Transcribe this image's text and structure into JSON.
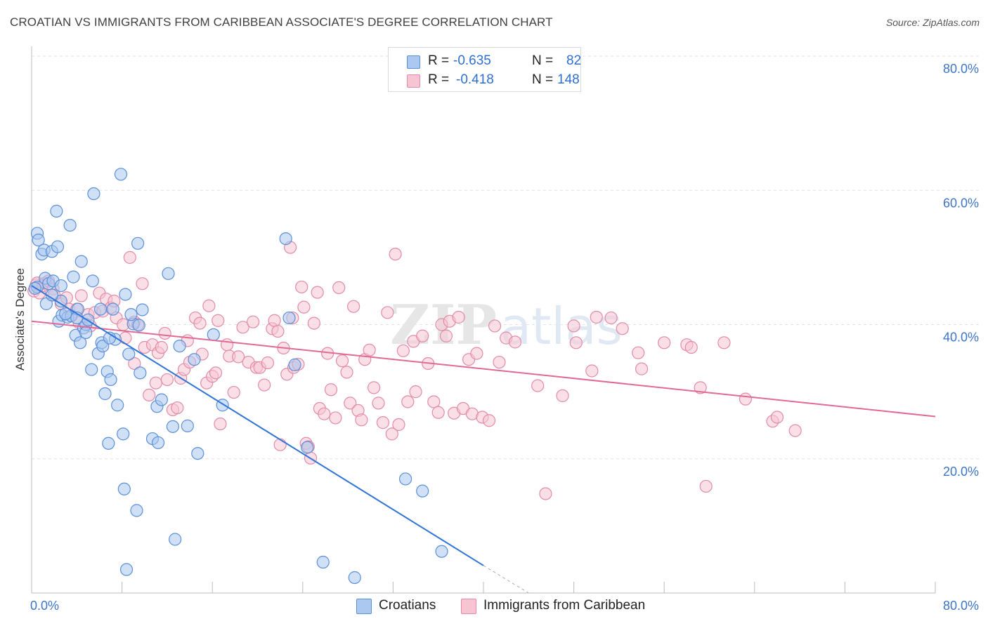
{
  "header": {
    "title": "CROATIAN VS IMMIGRANTS FROM CARIBBEAN ASSOCIATE'S DEGREE CORRELATION CHART",
    "source": "Source: ZipAtlas.com"
  },
  "legend_top": {
    "rows": [
      {
        "r_label": "R =",
        "r_value": "-0.635",
        "n_label": "N =",
        "n_value": "82"
      },
      {
        "r_label": "R =",
        "r_value": "-0.418",
        "n_label": "N =",
        "n_value": "148"
      }
    ]
  },
  "legend_bottom": [
    "Croatians",
    "Immigrants from Caribbean"
  ],
  "colors": {
    "blue_fill": "#aac8f0",
    "blue_stroke": "#5b8fd8",
    "blue_line": "#2f74d6",
    "pink_fill": "#f7c4d4",
    "pink_stroke": "#e28aa8",
    "pink_line": "#e06a95",
    "grid": "#e3e3e3",
    "axis_text": "#3d74c9"
  },
  "chart_data": {
    "type": "scatter",
    "title": "CROATIAN VS IMMIGRANTS FROM CARIBBEAN ASSOCIATE'S DEGREE CORRELATION CHART",
    "xlabel": "",
    "ylabel": "Associate's Degree",
    "xlim": [
      0,
      80
    ],
    "ylim": [
      0,
      80
    ],
    "x_tick_labels": [
      "0.0%",
      "80.0%"
    ],
    "y_tick_labels": [
      "20.0%",
      "40.0%",
      "60.0%",
      "80.0%"
    ],
    "y_ticks": [
      20,
      40,
      60,
      80
    ],
    "grid": true,
    "watermark": "ZIPatlas",
    "series": [
      {
        "name": "Croatians",
        "color": "#5b8fd8",
        "points": [
          [
            0.5,
            45.6
          ],
          [
            0.5,
            53.6
          ],
          [
            0.6,
            52.6
          ],
          [
            0.9,
            50.5
          ],
          [
            1.1,
            51.1
          ],
          [
            1.2,
            46.9
          ],
          [
            1.3,
            43.1
          ],
          [
            1.5,
            46.1
          ],
          [
            1.8,
            50.9
          ],
          [
            1.9,
            46.5
          ],
          [
            2.2,
            56.9
          ],
          [
            2.3,
            51.6
          ],
          [
            2.4,
            40.5
          ],
          [
            2.6,
            43.5
          ],
          [
            2.7,
            41.4
          ],
          [
            3.2,
            41.1
          ],
          [
            3.4,
            54.8
          ],
          [
            3.5,
            41.3
          ],
          [
            3.7,
            47.1
          ],
          [
            3.9,
            38.4
          ],
          [
            4.1,
            42.3
          ],
          [
            4.3,
            37.3
          ],
          [
            4.4,
            49.4
          ],
          [
            4.6,
            39.5
          ],
          [
            4.8,
            40.0
          ],
          [
            4.8,
            38.8
          ],
          [
            5.3,
            33.3
          ],
          [
            5.4,
            46.5
          ],
          [
            5.5,
            59.5
          ],
          [
            5.9,
            35.7
          ],
          [
            6.1,
            42.3
          ],
          [
            6.2,
            37.3
          ],
          [
            6.3,
            36.8
          ],
          [
            6.5,
            29.7
          ],
          [
            6.7,
            33.0
          ],
          [
            6.8,
            22.3
          ],
          [
            7.0,
            31.8
          ],
          [
            7.2,
            42.3
          ],
          [
            7.4,
            37.8
          ],
          [
            7.6,
            28.0
          ],
          [
            7.9,
            62.4
          ],
          [
            8.1,
            23.7
          ],
          [
            8.2,
            15.5
          ],
          [
            8.3,
            44.5
          ],
          [
            8.4,
            3.5
          ],
          [
            8.6,
            35.6
          ],
          [
            9.0,
            40.1
          ],
          [
            9.3,
            12.3
          ],
          [
            9.4,
            52.1
          ],
          [
            9.5,
            39.9
          ],
          [
            9.6,
            32.8
          ],
          [
            9.8,
            42.2
          ],
          [
            10.7,
            23.0
          ],
          [
            11.1,
            27.8
          ],
          [
            11.2,
            22.4
          ],
          [
            11.5,
            28.8
          ],
          [
            12.1,
            47.6
          ],
          [
            12.5,
            24.8
          ],
          [
            12.7,
            8.0
          ],
          [
            13.1,
            36.8
          ],
          [
            13.8,
            24.9
          ],
          [
            14.4,
            34.8
          ],
          [
            14.7,
            20.8
          ],
          [
            16.1,
            38.5
          ],
          [
            16.9,
            28.0
          ],
          [
            22.5,
            52.8
          ],
          [
            22.8,
            41.0
          ],
          [
            23.3,
            34.0
          ],
          [
            24.4,
            21.7
          ],
          [
            25.8,
            4.6
          ],
          [
            28.6,
            2.3
          ],
          [
            33.1,
            17.0
          ],
          [
            34.6,
            15.2
          ],
          [
            36.3,
            6.2
          ],
          [
            2.6,
            45.8
          ],
          [
            3.0,
            41.6
          ],
          [
            1.8,
            44.4
          ],
          [
            5.0,
            40.7
          ],
          [
            0.3,
            45.4
          ],
          [
            6.9,
            38.0
          ],
          [
            4.0,
            41.0
          ],
          [
            8.8,
            41.5
          ]
        ]
      },
      {
        "name": "Immigrants from Caribbean",
        "color": "#e28aa8",
        "points": [
          [
            0.2,
            45.0
          ],
          [
            0.4,
            45.9
          ],
          [
            0.5,
            46.2
          ],
          [
            0.7,
            44.7
          ],
          [
            1.0,
            45.8
          ],
          [
            1.2,
            46.2
          ],
          [
            1.5,
            46.5
          ],
          [
            1.9,
            45.3
          ],
          [
            2.0,
            44.4
          ],
          [
            2.6,
            43.1
          ],
          [
            3.1,
            44.0
          ],
          [
            3.3,
            42.3
          ],
          [
            3.5,
            41.3
          ],
          [
            4.0,
            42.3
          ],
          [
            4.2,
            40.3
          ],
          [
            4.4,
            44.3
          ],
          [
            5.0,
            41.5
          ],
          [
            5.2,
            39.8
          ],
          [
            5.6,
            41.8
          ],
          [
            6.0,
            44.7
          ],
          [
            6.3,
            42.0
          ],
          [
            6.6,
            43.8
          ],
          [
            7.0,
            42.5
          ],
          [
            7.3,
            43.5
          ],
          [
            7.5,
            41.0
          ],
          [
            8.1,
            40.0
          ],
          [
            8.3,
            38.0
          ],
          [
            8.7,
            50.0
          ],
          [
            9.1,
            40.4
          ],
          [
            9.1,
            34.2
          ],
          [
            9.4,
            40.0
          ],
          [
            9.8,
            46.1
          ],
          [
            10.0,
            36.6
          ],
          [
            10.4,
            29.5
          ],
          [
            10.7,
            37.0
          ],
          [
            11.0,
            31.3
          ],
          [
            11.2,
            35.8
          ],
          [
            11.5,
            36.6
          ],
          [
            11.8,
            38.7
          ],
          [
            12.0,
            31.8
          ],
          [
            12.5,
            27.3
          ],
          [
            12.9,
            27.6
          ],
          [
            13.2,
            32.0
          ],
          [
            13.5,
            33.3
          ],
          [
            13.8,
            37.6
          ],
          [
            14.0,
            34.4
          ],
          [
            14.5,
            41.0
          ],
          [
            14.9,
            40.2
          ],
          [
            15.1,
            35.6
          ],
          [
            15.5,
            31.3
          ],
          [
            15.7,
            42.8
          ],
          [
            16.0,
            32.3
          ],
          [
            16.3,
            32.8
          ],
          [
            16.7,
            25.2
          ],
          [
            17.3,
            37.0
          ],
          [
            17.5,
            35.3
          ],
          [
            17.9,
            29.9
          ],
          [
            18.3,
            35.2
          ],
          [
            18.7,
            39.6
          ],
          [
            19.2,
            34.4
          ],
          [
            19.6,
            40.4
          ],
          [
            19.9,
            33.6
          ],
          [
            20.2,
            33.6
          ],
          [
            20.6,
            31.0
          ],
          [
            20.9,
            34.3
          ],
          [
            21.3,
            39.4
          ],
          [
            21.5,
            40.6
          ],
          [
            21.8,
            39.0
          ],
          [
            22.0,
            22.1
          ],
          [
            22.3,
            36.5
          ],
          [
            22.6,
            32.6
          ],
          [
            22.9,
            51.5
          ],
          [
            23.2,
            33.6
          ],
          [
            23.6,
            34.1
          ],
          [
            23.9,
            45.6
          ],
          [
            24.1,
            42.6
          ],
          [
            24.3,
            22.3
          ],
          [
            24.5,
            21.8
          ],
          [
            24.7,
            20.1
          ],
          [
            25.0,
            40.2
          ],
          [
            25.3,
            44.8
          ],
          [
            25.5,
            27.5
          ],
          [
            25.9,
            26.7
          ],
          [
            26.2,
            35.7
          ],
          [
            26.5,
            30.3
          ],
          [
            26.9,
            26.1
          ],
          [
            27.2,
            45.5
          ],
          [
            27.5,
            34.6
          ],
          [
            27.9,
            32.9
          ],
          [
            28.2,
            28.3
          ],
          [
            28.5,
            42.7
          ],
          [
            28.9,
            27.2
          ],
          [
            29.2,
            25.8
          ],
          [
            29.5,
            34.8
          ],
          [
            29.9,
            36.2
          ],
          [
            30.3,
            30.6
          ],
          [
            30.7,
            28.3
          ],
          [
            31.1,
            25.4
          ],
          [
            31.5,
            41.8
          ],
          [
            31.9,
            23.7
          ],
          [
            32.2,
            50.5
          ],
          [
            32.5,
            25.1
          ],
          [
            32.9,
            36.1
          ],
          [
            33.3,
            28.5
          ],
          [
            33.8,
            37.5
          ],
          [
            34.0,
            30.0
          ],
          [
            34.6,
            38.3
          ],
          [
            35.1,
            34.2
          ],
          [
            35.6,
            28.5
          ],
          [
            36.0,
            26.9
          ],
          [
            36.3,
            40.0
          ],
          [
            36.7,
            38.3
          ],
          [
            37.0,
            40.5
          ],
          [
            37.4,
            26.8
          ],
          [
            37.8,
            41.1
          ],
          [
            38.2,
            27.5
          ],
          [
            38.7,
            34.8
          ],
          [
            39.0,
            26.7
          ],
          [
            39.4,
            35.7
          ],
          [
            39.9,
            26.2
          ],
          [
            40.5,
            25.7
          ],
          [
            41.0,
            39.8
          ],
          [
            41.4,
            34.4
          ],
          [
            42.0,
            38.0
          ],
          [
            42.8,
            37.4
          ],
          [
            44.8,
            30.9
          ],
          [
            45.5,
            14.8
          ],
          [
            47.0,
            29.4
          ],
          [
            48.0,
            39.8
          ],
          [
            48.2,
            37.3
          ],
          [
            49.6,
            33.1
          ],
          [
            50.0,
            41.1
          ],
          [
            51.3,
            41.0
          ],
          [
            52.3,
            39.4
          ],
          [
            53.7,
            35.8
          ],
          [
            54.0,
            33.4
          ],
          [
            56.0,
            37.3
          ],
          [
            58.0,
            37.0
          ],
          [
            58.4,
            36.6
          ],
          [
            59.2,
            30.6
          ],
          [
            59.7,
            15.9
          ],
          [
            61.3,
            37.3
          ],
          [
            63.2,
            28.9
          ],
          [
            65.6,
            25.6
          ],
          [
            66.0,
            26.2
          ],
          [
            67.6,
            24.2
          ],
          [
            23.1,
            41.0
          ],
          [
            16.5,
            40.6
          ]
        ]
      }
    ],
    "trend_lines": [
      {
        "series": "Croatians",
        "x": [
          0,
          40
        ],
        "y": [
          45.8,
          4.1
        ],
        "dashed_extension_x": [
          40,
          44
        ],
        "dashed_extension_y": [
          4.1,
          0
        ]
      },
      {
        "series": "Immigrants from Caribbean",
        "x": [
          0,
          80
        ],
        "y": [
          40.5,
          26.3
        ]
      }
    ]
  }
}
